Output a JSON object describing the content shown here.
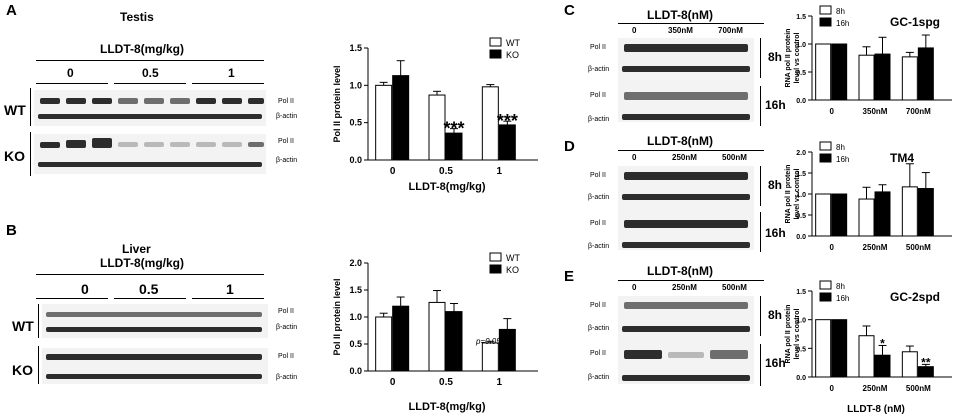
{
  "panels": {
    "A": {
      "letter": "A",
      "title": "Testis",
      "treatment_label": "LLDT-8(mg/kg)",
      "doses": [
        "0",
        "0.5",
        "1"
      ],
      "rows": [
        {
          "group": "WT",
          "bands": [
            "Pol II",
            "β-actin"
          ]
        },
        {
          "group": "KO",
          "bands": [
            "Pol II",
            "β-actin"
          ]
        }
      ]
    },
    "B": {
      "letter": "B",
      "title": "Liver",
      "treatment_label": "LLDT-8(mg/kg)",
      "doses": [
        "0",
        "0.5",
        "1"
      ],
      "rows": [
        {
          "group": "WT",
          "bands": [
            "Pol II",
            "β-actin"
          ]
        },
        {
          "group": "KO",
          "bands": [
            "Pol II",
            "β-actin"
          ]
        }
      ]
    },
    "C": {
      "letter": "C",
      "treatment_label": "LLDT-8(nM)",
      "doses": [
        "0",
        "350nM",
        "700nM"
      ],
      "band_labels": [
        "Pol II",
        "β-actin",
        "Pol II",
        "β-actin"
      ],
      "times": [
        "8h",
        "16h"
      ]
    },
    "D": {
      "letter": "D",
      "treatment_label": "LLDT-8(nM)",
      "doses": [
        "0",
        "250nM",
        "500nM"
      ],
      "band_labels": [
        "Pol II",
        "β-actin",
        "Pol II",
        "β-actin"
      ],
      "times": [
        "8h",
        "16h"
      ]
    },
    "E": {
      "letter": "E",
      "treatment_label": "LLDT-8(nM)",
      "doses": [
        "0",
        "250nM",
        "500nM"
      ],
      "band_labels": [
        "Pol II",
        "β-actin",
        "Pol II",
        "β-actin"
      ],
      "times": [
        "8h",
        "16h"
      ]
    }
  },
  "chart_data": [
    {
      "id": "A",
      "type": "bar",
      "categories": [
        "0",
        "0.5",
        "1"
      ],
      "series": [
        {
          "name": "WT",
          "values": [
            1.0,
            0.87,
            0.98
          ],
          "errors": [
            0.04,
            0.05,
            0.03
          ],
          "color": "#ffffff"
        },
        {
          "name": "KO",
          "values": [
            1.13,
            0.36,
            0.47
          ],
          "errors": [
            0.2,
            0.06,
            0.05
          ],
          "color": "#000000"
        }
      ],
      "annotations": [
        {
          "category": "0.5",
          "series": "KO",
          "text": "***"
        },
        {
          "category": "1",
          "series": "KO",
          "text": "***"
        }
      ],
      "title": "",
      "xlabel": "LLDT-8(mg/kg)",
      "ylabel": "Pol II protein level",
      "ylim": [
        0,
        1.5
      ],
      "yticks": [
        "0.0",
        "0.5",
        "1.0",
        "1.5"
      ],
      "legend": "top-right"
    },
    {
      "id": "B",
      "type": "bar",
      "categories": [
        "0",
        "0.5",
        "1"
      ],
      "series": [
        {
          "name": "WT",
          "values": [
            1.0,
            1.27,
            0.52
          ],
          "errors": [
            0.07,
            0.22,
            0.03
          ],
          "color": "#ffffff"
        },
        {
          "name": "KO",
          "values": [
            1.2,
            1.1,
            0.77
          ],
          "errors": [
            0.17,
            0.15,
            0.2
          ],
          "color": "#000000"
        }
      ],
      "annotations": [
        {
          "category": "1",
          "series": "WT",
          "text": "p=0.05"
        }
      ],
      "title": "",
      "xlabel": "LLDT-8(mg/kg)",
      "ylabel": "Pol II protein level",
      "ylim": [
        0,
        2.0
      ],
      "yticks": [
        "0.0",
        "0.5",
        "1.0",
        "1.5",
        "2.0"
      ],
      "legend": "top-right"
    },
    {
      "id": "C",
      "type": "bar",
      "categories": [
        "0",
        "350nM",
        "700nM"
      ],
      "series": [
        {
          "name": "8h",
          "values": [
            1.0,
            0.8,
            0.77
          ],
          "errors": [
            0.0,
            0.15,
            0.08
          ],
          "color": "#ffffff"
        },
        {
          "name": "16h",
          "values": [
            1.0,
            0.82,
            0.93
          ],
          "errors": [
            0.0,
            0.3,
            0.23
          ],
          "color": "#000000"
        }
      ],
      "annotations": [],
      "title": "GC-1spg",
      "xlabel": "",
      "ylabel": "RNA pol II protein level vs control",
      "ylim": [
        0,
        1.5
      ],
      "yticks": [
        "0.0",
        "0.5",
        "1.0",
        "1.5"
      ],
      "legend": "top-left"
    },
    {
      "id": "D",
      "type": "bar",
      "categories": [
        "0",
        "250nM",
        "500nM"
      ],
      "series": [
        {
          "name": "8h",
          "values": [
            1.0,
            0.88,
            1.17
          ],
          "errors": [
            0.0,
            0.28,
            0.55
          ],
          "color": "#ffffff"
        },
        {
          "name": "16h",
          "values": [
            1.0,
            1.05,
            1.13
          ],
          "errors": [
            0.0,
            0.17,
            0.38
          ],
          "color": "#000000"
        }
      ],
      "annotations": [],
      "title": "TM4",
      "xlabel": "",
      "ylabel": "RNA pol II protein level vs control",
      "ylim": [
        0,
        2.0
      ],
      "yticks": [
        "0.0",
        "0.5",
        "1.0",
        "1.5",
        "2.0"
      ],
      "legend": "top-left"
    },
    {
      "id": "E",
      "type": "bar",
      "categories": [
        "0",
        "250nM",
        "500nM"
      ],
      "series": [
        {
          "name": "8h",
          "values": [
            1.0,
            0.72,
            0.44
          ],
          "errors": [
            0.0,
            0.17,
            0.1
          ],
          "color": "#ffffff"
        },
        {
          "name": "16h",
          "values": [
            1.0,
            0.38,
            0.18
          ],
          "errors": [
            0.0,
            0.17,
            0.04
          ],
          "color": "#000000"
        }
      ],
      "annotations": [
        {
          "category": "250nM",
          "series": "16h",
          "text": "*"
        },
        {
          "category": "500nM",
          "series": "16h",
          "text": "**"
        }
      ],
      "title": "GC-2spd",
      "xlabel": "LLDT-8 (nM)",
      "ylabel": "RNA pol II protein level vs control",
      "ylim": [
        0,
        1.5
      ],
      "yticks": [
        "0.0",
        "0.5",
        "1.0",
        "1.5"
      ],
      "legend": "top-left"
    }
  ]
}
